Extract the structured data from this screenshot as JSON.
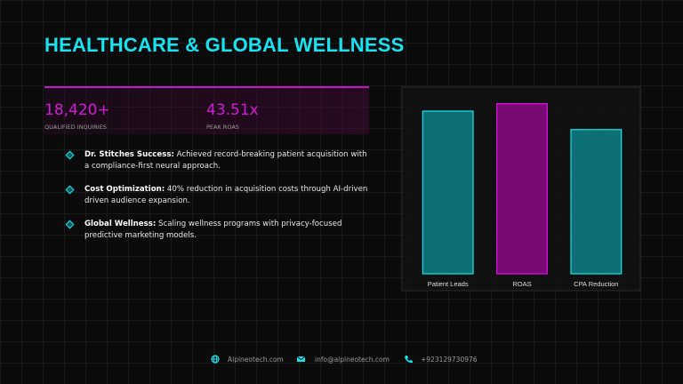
{
  "header": {
    "title": "HEALTHCARE & GLOBAL WELLNESS"
  },
  "stats": [
    {
      "value": "18,420+",
      "label": "QUALIFIED INQUIRIES"
    },
    {
      "value": "43.51x",
      "label": "PEAK ROAS"
    }
  ],
  "bullets": [
    {
      "label": "Dr. Stitches Success:",
      "text": "Achieved record-breaking patient acquisition with a compliance-first neural approach."
    },
    {
      "label": "Cost Optimization:",
      "text": "40% reduction in acquisition costs through AI-driven driven audience expansion."
    },
    {
      "label": "Global Wellness:",
      "text": "Scaling wellness programs with privacy-focused predictive marketing models."
    }
  ],
  "chart_data": {
    "type": "bar",
    "categories": [
      "Patient Leads",
      "ROAS",
      "CPA Reduction"
    ],
    "values": [
      88,
      92,
      78
    ],
    "colors": [
      "#0d7f86",
      "#8a0a85",
      "#0d7f86"
    ],
    "edge_colors": [
      "#19e3f0",
      "#e010e6",
      "#19e3f0"
    ],
    "ylim": [
      0,
      100
    ]
  },
  "footer": {
    "website": "Alpineotech.com",
    "email": "info@alpineotech.com",
    "phone": "+923129730976"
  }
}
